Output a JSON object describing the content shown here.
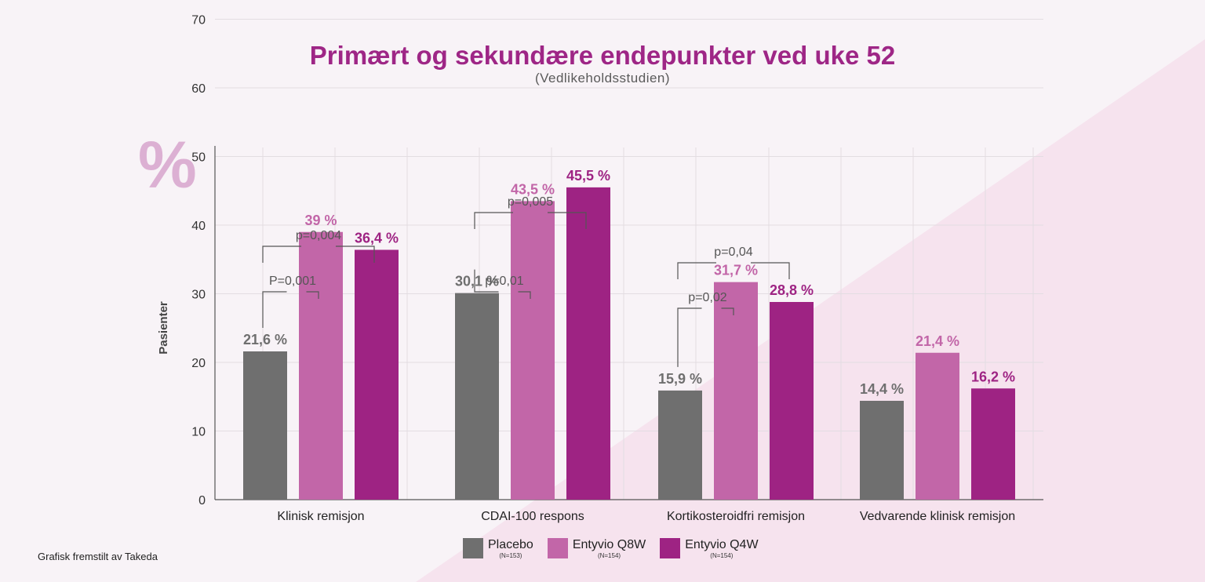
{
  "title": "Primært og sekundære endepunkter ved uke 52",
  "subtitle": "(Vedlikeholdsstudien)",
  "credit": "Grafisk fremstilt av Takeda",
  "percent_symbol": "%",
  "legend": [
    {
      "label": "Placebo",
      "n": "(N=153)",
      "color": "#6f6f6f"
    },
    {
      "label": "Entyvio Q8W",
      "n": "(N=154)",
      "color": "#c266a8"
    },
    {
      "label": "Entyvio Q4W",
      "n": "(N=154)",
      "color": "#9e2383"
    }
  ],
  "chart_data": {
    "type": "bar",
    "title": "Primært og sekundære endepunkter ved uke 52",
    "ylabel": "Pasienter",
    "ylim": [
      0,
      70
    ],
    "yticks": [
      "0",
      "10",
      "20",
      "30",
      "40",
      "50",
      "60",
      "70"
    ],
    "grid": true,
    "categories": [
      "Klinisk remisjon",
      "CDAI-100 respons",
      "Kortikosteroidfri remisjon",
      "Vedvarende klinisk remisjon"
    ],
    "series": [
      {
        "name": "Placebo",
        "color": "#6f6f6f",
        "label_color": "#6f6f6f",
        "values": [
          21.6,
          30.1,
          15.9,
          14.4
        ],
        "labels": [
          "21,6 %",
          "30,1 %",
          "15,9 %",
          "14,4 %"
        ]
      },
      {
        "name": "Entyvio Q8W",
        "color": "#c266a8",
        "label_color": "#c266a8",
        "values": [
          39,
          43.5,
          31.7,
          21.4
        ],
        "labels": [
          "39 %",
          "43,5 %",
          "31,7 %",
          "21,4 %"
        ]
      },
      {
        "name": "Entyvio Q4W",
        "color": "#9e2383",
        "label_color": "#9e2383",
        "values": [
          36.4,
          45.5,
          28.8,
          16.2
        ],
        "labels": [
          "36,4 %",
          "45,5 %",
          "28,8 %",
          "16,2 %"
        ]
      }
    ],
    "comparisons": [
      {
        "group": 0,
        "from": 0,
        "to": 1,
        "label": "P=0,001",
        "level": 1
      },
      {
        "group": 0,
        "from": 0,
        "to": 2,
        "label": "p=0,004",
        "level": 2
      },
      {
        "group": 1,
        "from": 0,
        "to": 1,
        "label": "p=0,01",
        "level": 1
      },
      {
        "group": 1,
        "from": 0,
        "to": 2,
        "label": "p=0,005",
        "level": 2
      },
      {
        "group": 2,
        "from": 0,
        "to": 1,
        "label": "p=0,02",
        "level": 1
      },
      {
        "group": 2,
        "from": 0,
        "to": 2,
        "label": "p=0,04",
        "level": 2
      }
    ]
  }
}
